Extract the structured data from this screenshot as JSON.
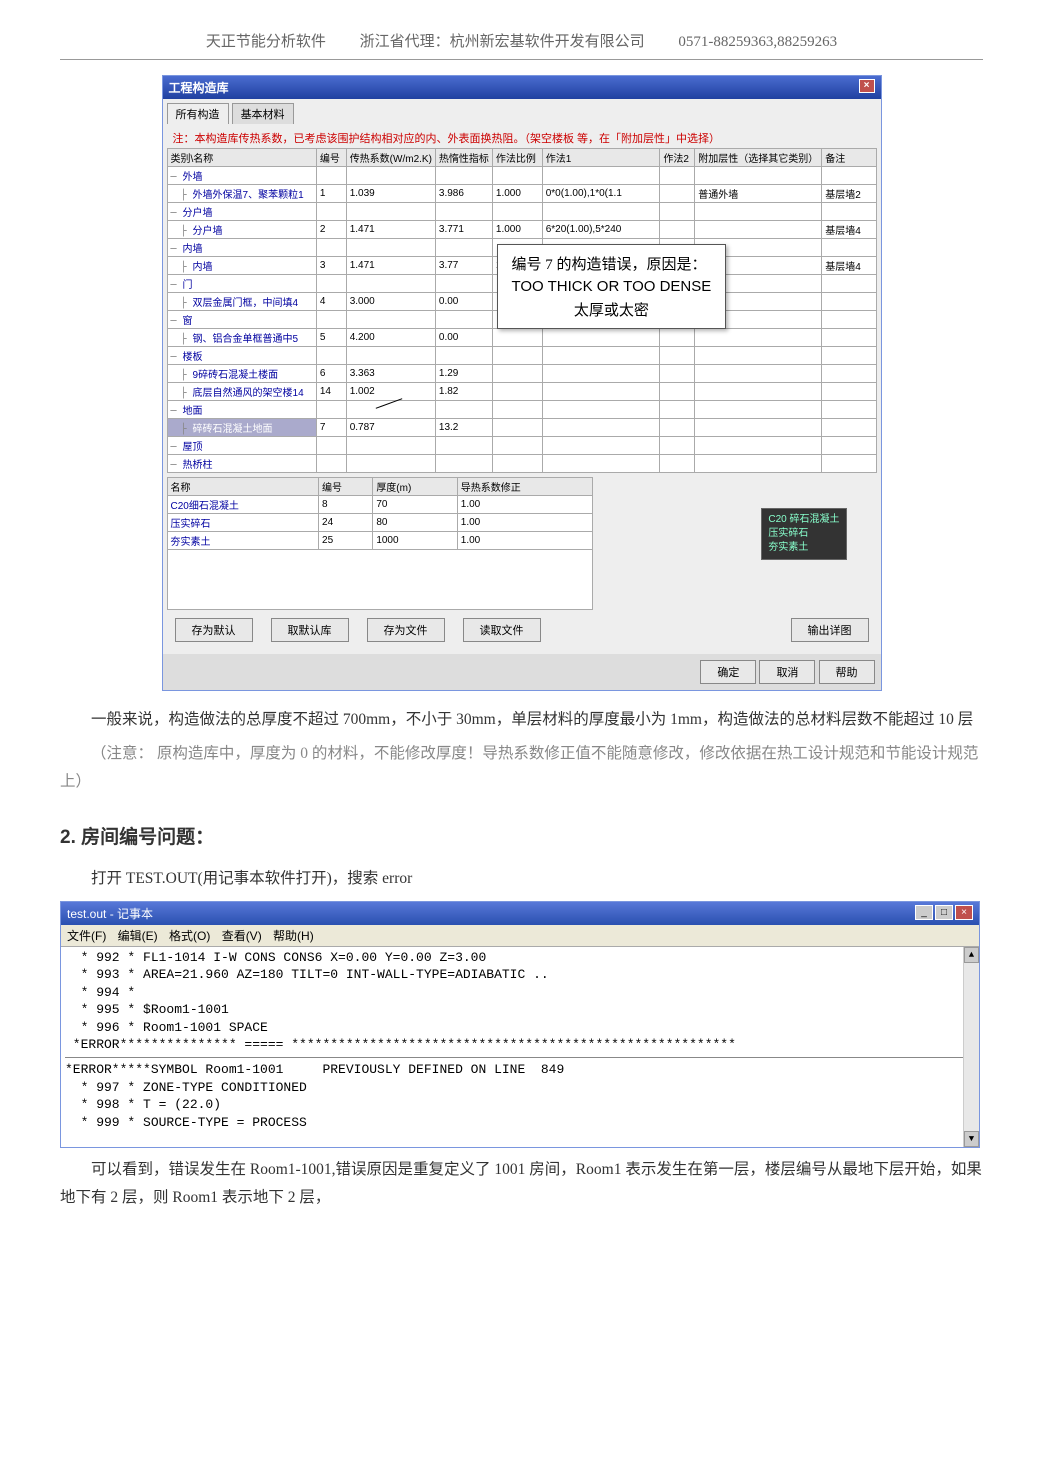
{
  "header": {
    "product": "天正节能分析软件",
    "agent": "浙江省代理：杭州新宏基软件开发有限公司",
    "phone": "0571-88259363,88259263"
  },
  "win1": {
    "title": "工程构造库",
    "close": "×",
    "tabs": {
      "t1": "所有构造",
      "t2": "基本材料"
    },
    "note": "注：本构造库传热系数，已考虑该围护结构相对应的内、外表面换热阻。（架空楼板 等，在「附加层性」中选择）",
    "table1": {
      "headers": [
        "类别\\名称",
        "编号",
        "传热系数(W/m2.K)",
        "热惰性指标",
        "作法比例",
        "作法1",
        "作法2",
        "附加层性（选择其它类别）",
        "备注"
      ],
      "rows": [
        {
          "name": "外墙",
          "indent": 0
        },
        {
          "name": "外墙外保温7、聚苯颗粒1",
          "indent": 1,
          "c": [
            "1",
            "1.039",
            "3.986",
            "1.000",
            "0*0(1.00),1*0(1.1",
            "",
            "普通外墙",
            "基层墙2"
          ]
        },
        {
          "name": "分户墙",
          "indent": 0
        },
        {
          "name": "分户墙",
          "indent": 1,
          "c": [
            "2",
            "1.471",
            "3.771",
            "1.000",
            "6*20(1.00),5*240",
            "",
            "",
            "基层墙4"
          ]
        },
        {
          "name": "内墙",
          "indent": 0
        },
        {
          "name": "内墙",
          "indent": 1,
          "c": [
            "3",
            "1.471",
            "3.77",
            "1.000",
            "6*20(1.00),5*240",
            "",
            "",
            "基层墙4"
          ]
        },
        {
          "name": "门",
          "indent": 0
        },
        {
          "name": "双层金属门框，中间填4",
          "indent": 1,
          "c": [
            "4",
            "3.000",
            "0.00",
            "",
            "",
            "",
            "",
            ""
          ]
        },
        {
          "name": "窗",
          "indent": 0
        },
        {
          "name": "钢、铝合金单框普通中5",
          "indent": 1,
          "c": [
            "5",
            "4.200",
            "0.00",
            "",
            "",
            "",
            "",
            ""
          ]
        },
        {
          "name": "楼板",
          "indent": 0
        },
        {
          "name": "9碎砖石混凝土楼面",
          "indent": 1,
          "c": [
            "6",
            "3.363",
            "1.29",
            "",
            "",
            "",
            "",
            ""
          ]
        },
        {
          "name": "底层自然通风的架空楼14",
          "indent": 1,
          "c": [
            "14",
            "1.002",
            "1.82",
            "",
            "",
            "",
            "",
            ""
          ]
        },
        {
          "name": "地面",
          "indent": 0
        },
        {
          "name": "碎砖石混凝土地面",
          "indent": 1,
          "sel": true,
          "c": [
            "7",
            "0.787",
            "13.2",
            "",
            "",
            "",
            "",
            ""
          ]
        },
        {
          "name": "屋顶",
          "indent": 0
        },
        {
          "name": "热桥柱",
          "indent": 0
        }
      ]
    },
    "popup": {
      "line1": "编号 7 的构造错误，原因是：",
      "line2": "TOO THICK OR TOO DENSE",
      "line3": "太厚或太密"
    },
    "table2": {
      "headers": [
        "名称",
        "编号",
        "厚度(m)",
        "导热系数修正"
      ],
      "rows": [
        [
          "C20细石混凝土",
          "8",
          "70",
          "1.00"
        ],
        [
          "压实碎石",
          "24",
          "80",
          "1.00"
        ],
        [
          "夯实素土",
          "25",
          "1000",
          "1.00"
        ]
      ]
    },
    "legend": {
      "l1": "C20 碎石混凝土",
      "l2": "压实碎石",
      "l3": "夯实素土"
    },
    "buttons": {
      "b1": "存为默认",
      "b2": "取默认库",
      "b3": "存为文件",
      "b4": "读取文件",
      "b5": "输出详图",
      "ok": "确定",
      "cancel": "取消",
      "help": "帮助"
    }
  },
  "paras": {
    "p1": "一般来说，构造做法的总厚度不超过 700mm，不小于 30mm，单层材料的厚度最小为 1mm，构造做法的总材料层数不能超过 10 层",
    "p2": "（注意：  原构造库中，厚度为 0 的材料，不能修改厚度！导热系数修正值不能随意修改，修改依据在热工设计规范和节能设计规范上）",
    "h2": "2. 房间编号问题：",
    "p3": "打开 TEST.OUT(用记事本软件打开)，搜索 error"
  },
  "notepad": {
    "title": "test.out - 记事本",
    "menu": {
      "m1": "文件(F)",
      "m2": "编辑(E)",
      "m3": "格式(O)",
      "m4": "查看(V)",
      "m5": "帮助(H)"
    },
    "lines": [
      "  * 992 * FL1-1014 I-W CONS CONS6 X=0.00 Y=0.00 Z=3.00",
      "  * 993 * AREA=21.960 AZ=180 TILT=0 INT-WALL-TYPE=ADIABATIC ..",
      "  * 994 *",
      "  * 995 * $Room1-1001",
      "  * 996 * Room1-1001 SPACE",
      " *ERROR*************** ===== *********************************************************",
      "*ERROR*****SYMBOL Room1-1001     PREVIOUSLY DEFINED ON LINE  849",
      "  * 997 * ZONE-TYPE CONDITIONED",
      "  * 998 * T = (22.0)",
      "  * 999 * SOURCE-TYPE = PROCESS"
    ]
  },
  "paras2": {
    "p4": "可以看到，错误发生在 Room1-1001,错误原因是重复定义了 1001 房间，Room1 表示发生在第一层，楼层编号从最地下层开始，如果地下有 2 层，则 Room1 表示地下 2 层，"
  }
}
